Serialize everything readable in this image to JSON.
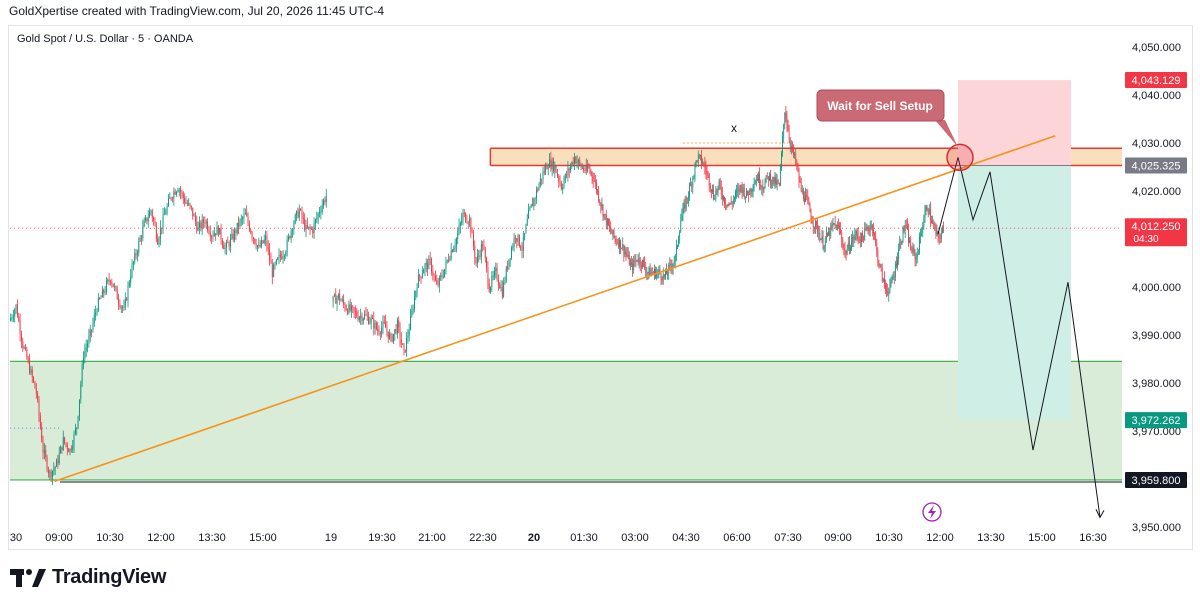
{
  "header": {
    "attribution": "GoldXpertise created with TradingView.com, Jul 20, 2026 11:45 UTC-4"
  },
  "symbol": {
    "title": "Gold Spot / U.S. Dollar · 5 · OANDA"
  },
  "footer": {
    "brand": "TradingView"
  },
  "colors": {
    "up": "#089981",
    "down": "#f23645",
    "trend": "#f7931a",
    "zone_fill": "#f8d9b0",
    "zone_border": "#e53935",
    "demand_fill": "#d8ecd8",
    "demand_border": "#4caf50",
    "stop_fill": "#fbd5d8",
    "target_fill": "#cfeee6"
  },
  "chart_data": {
    "type": "candlestick",
    "ylim": [
      3945,
      4055
    ],
    "y_ticks": [
      "3,950.000",
      "3,960.000",
      "3,970.000",
      "3,980.000",
      "3,990.000",
      "4,000.000",
      "4,010.000",
      "4,020.000",
      "4,030.000",
      "4,040.000",
      "4,050.000"
    ],
    "y_tick_values": [
      3950,
      3960,
      3970,
      3980,
      3990,
      4000,
      4010,
      4020,
      4030,
      4040,
      4050
    ],
    "x_ticks": [
      "30",
      "09:00",
      "10:30",
      "12:00",
      "13:30",
      "15:00",
      "19",
      "19:30",
      "21:00",
      "22:30",
      "20",
      "01:30",
      "03:00",
      "04:30",
      "06:00",
      "07:30",
      "09:00",
      "10:30",
      "12:00",
      "13:30",
      "15:00",
      "16:30"
    ],
    "price_labels": [
      {
        "text": "4,043.129",
        "value": 4043.129,
        "color": "#f23645"
      },
      {
        "text": "4,025.325",
        "value": 4025.325,
        "color": "#787b86"
      },
      {
        "text": "4,012.250",
        "value": 4012.25,
        "sub": "04:30",
        "color": "#f23645"
      },
      {
        "text": "3,972.262",
        "value": 3972.262,
        "color": "#089981"
      },
      {
        "text": "3,959.800",
        "value": 3959.8,
        "color": "#131722"
      }
    ],
    "annotation": "Wait for Sell Setup",
    "x_marker": "x",
    "supply_zone": [
      4025.3,
      4028.9
    ],
    "demand_zone": [
      3959.8,
      3984.5
    ],
    "trendline": [
      {
        "t": 0.04,
        "v": 3959.5
      },
      {
        "t": 0.94,
        "v": 4031.5
      }
    ],
    "stop_zone": [
      4025.3,
      4043.1
    ],
    "target_zone": [
      3972.3,
      4025.3
    ],
    "projection": [
      4011,
      4027,
      4014,
      4024,
      3966,
      4001,
      3952
    ],
    "segments": [
      {
        "t0": 0.0,
        "t1": 0.285,
        "path": [
          3993,
          3996,
          3988,
          3983,
          3978,
          3966,
          3961,
          3963,
          3968,
          3966,
          3971,
          3986,
          3990,
          3996,
          3999,
          4002,
          3998,
          3995,
          4003,
          4008,
          4013,
          4016,
          4010,
          4015,
          4019,
          4021,
          4018,
          4016,
          4012,
          4014,
          4011,
          4012,
          4008,
          4010,
          4013,
          4015,
          4011,
          4008,
          4010,
          4003,
          4006,
          4008,
          4013,
          4016,
          4012,
          4012,
          4016,
          4019
        ]
      },
      {
        "t0": 0.29,
        "t1": 0.52,
        "path": [
          3997,
          3998,
          3996,
          3995,
          3994,
          3994,
          3993,
          3991,
          3992,
          3989,
          3992,
          3986,
          3993,
          4001,
          4004,
          4005,
          4000,
          4003,
          4007,
          4010,
          4015,
          4014,
          4005,
          4009,
          4000,
          4003,
          3999,
          4006,
          4011,
          4008,
          4015,
          4019,
          4023,
          4026,
          4025,
          4021,
          4024,
          4027,
          4025,
          4024
        ]
      },
      {
        "t0": 0.52,
        "t1": 0.84,
        "path": [
          4025,
          4023,
          4019,
          4015,
          4012,
          4010,
          4009,
          4007,
          4004,
          4006,
          4005,
          4003,
          4003,
          4003,
          4002,
          4004,
          4006,
          4014,
          4018,
          4022,
          4027,
          4026,
          4023,
          4019,
          4021,
          4018,
          4017,
          4019,
          4021,
          4019,
          4021,
          4023,
          4021,
          4023,
          4022,
          4021,
          4037,
          4030,
          4026,
          4020,
          4018,
          4014,
          4012,
          4009,
          4011,
          4013,
          4012,
          4007,
          4009,
          4011,
          4010,
          4012,
          4013,
          4006,
          4001,
          3999,
          4003,
          4009,
          4013,
          4008,
          4006,
          4012,
          4017,
          4013,
          4010,
          4012
        ]
      }
    ]
  }
}
